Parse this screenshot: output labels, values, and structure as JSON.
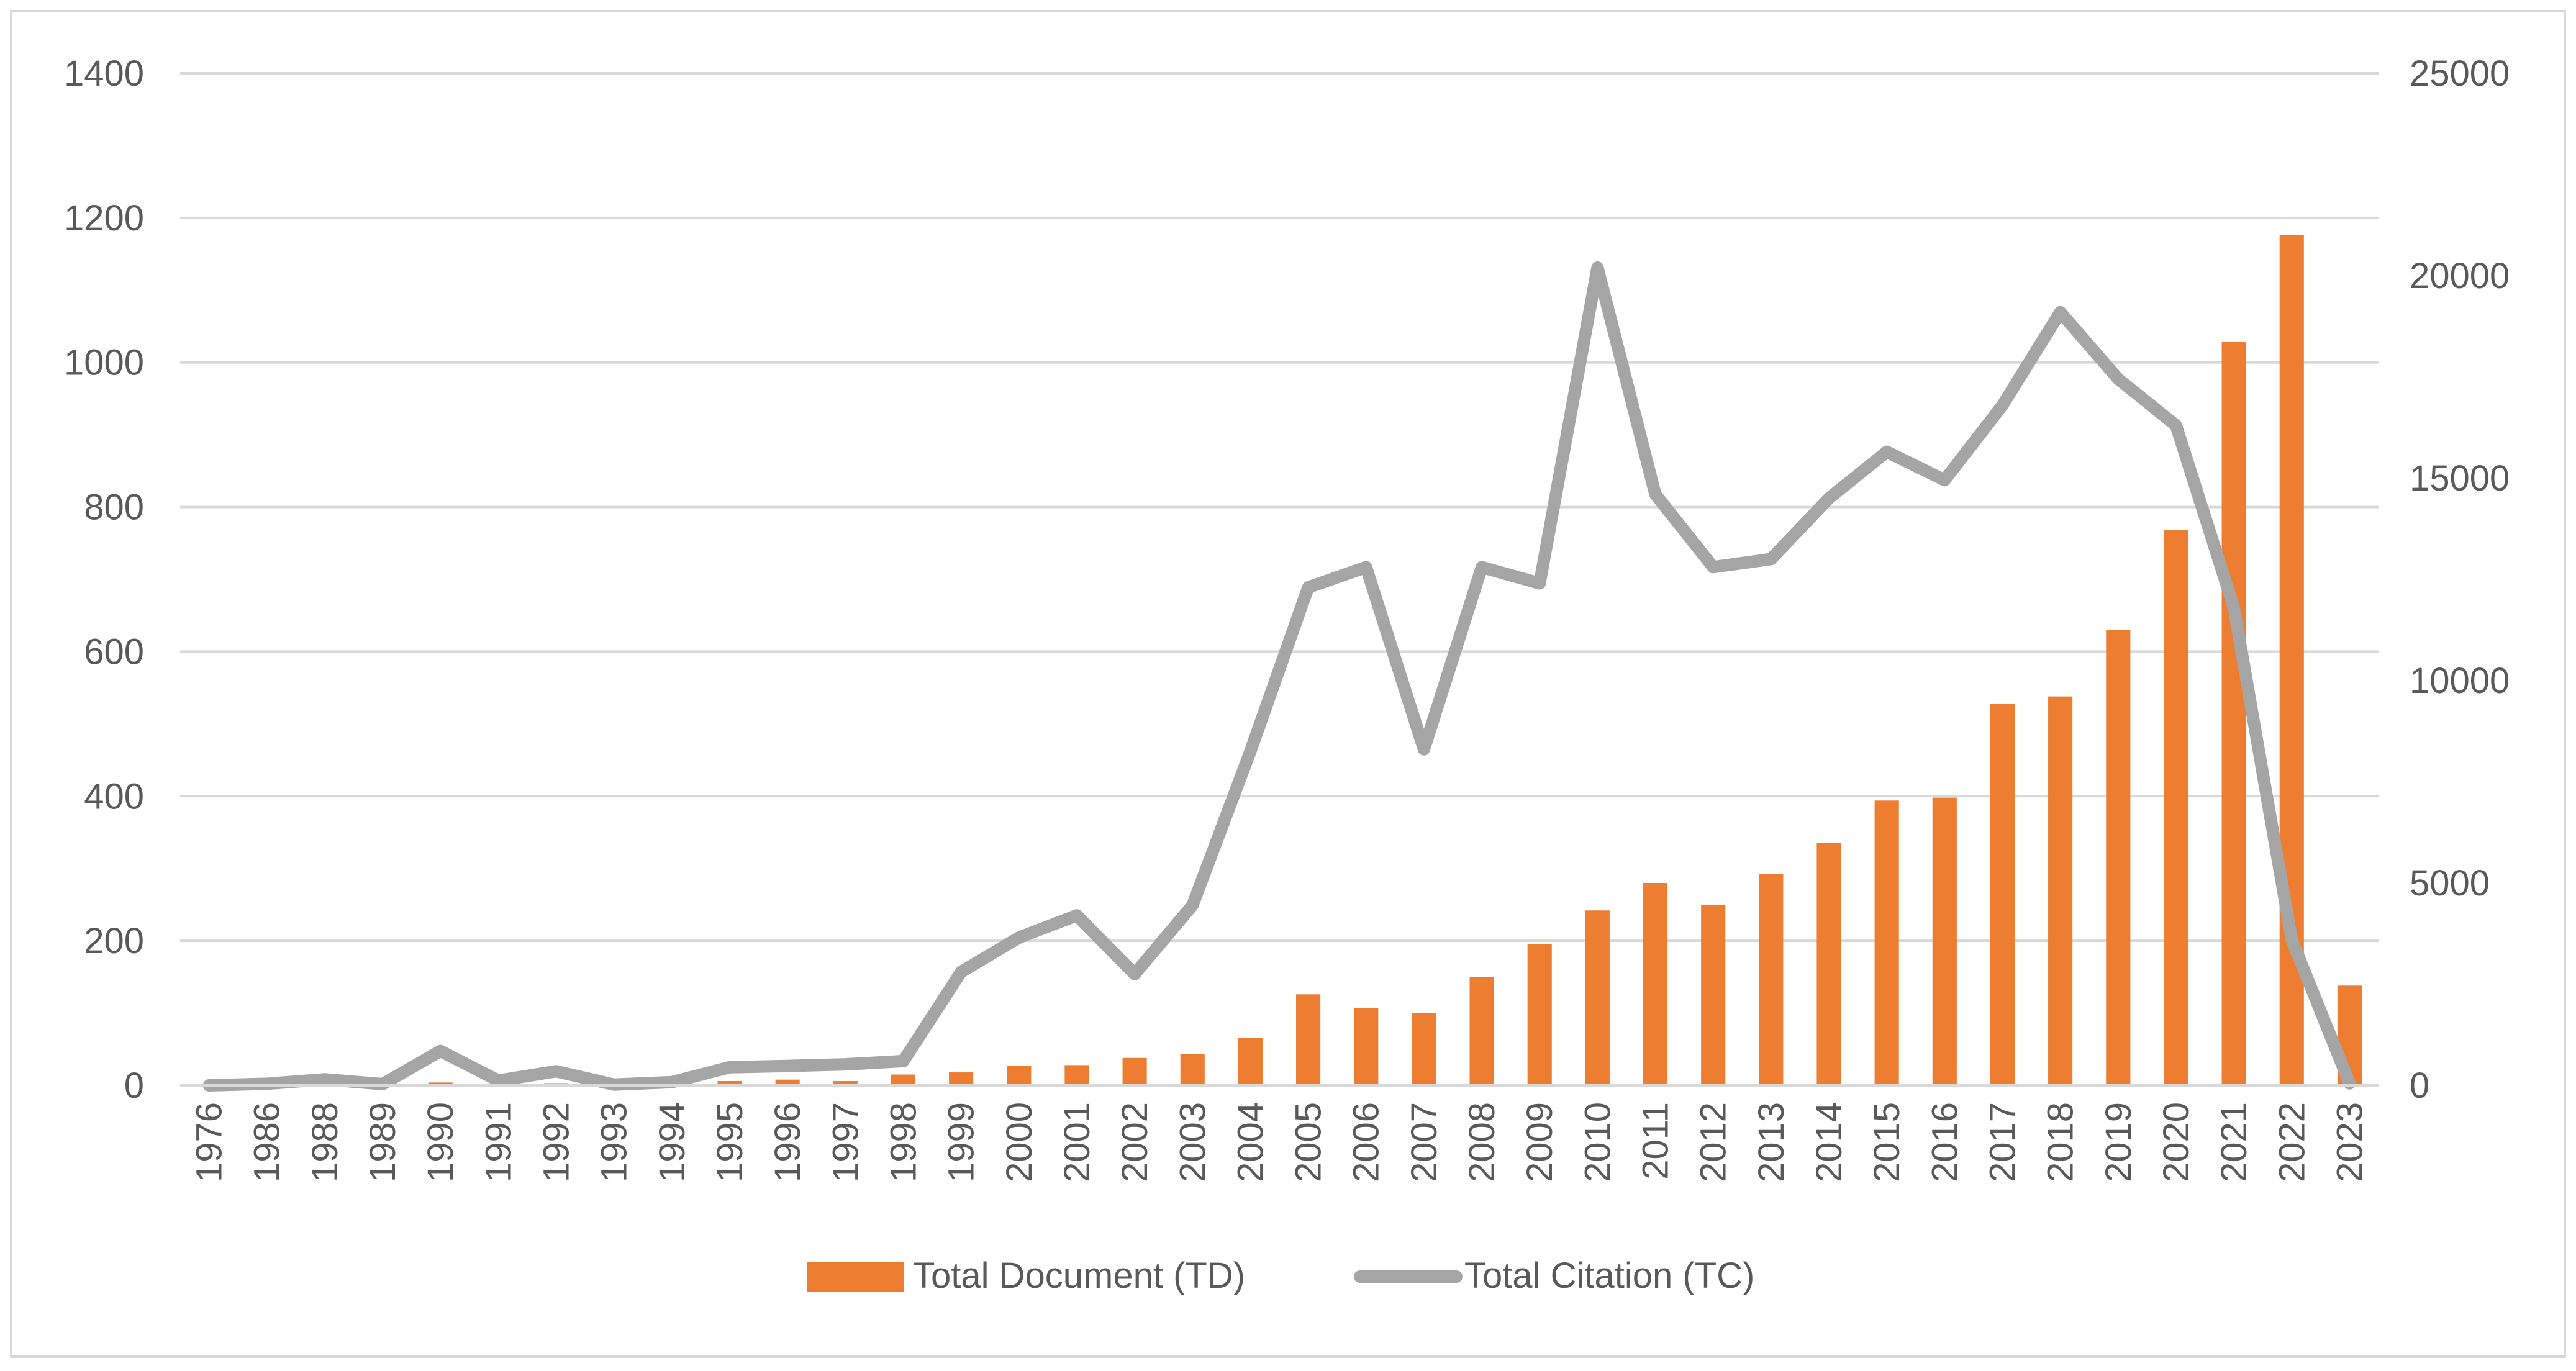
{
  "chart_data": {
    "type": "bar+line",
    "categories": [
      "1976",
      "1986",
      "1988",
      "1989",
      "1990",
      "1991",
      "1992",
      "1993",
      "1994",
      "1995",
      "1996",
      "1997",
      "1998",
      "1999",
      "2000",
      "2001",
      "2002",
      "2003",
      "2004",
      "2005",
      "2006",
      "2007",
      "2008",
      "2009",
      "2010",
      "2011",
      "2012",
      "2013",
      "2014",
      "2015",
      "2016",
      "2017",
      "2018",
      "2019",
      "2020",
      "2021",
      "2022",
      "2023"
    ],
    "series": [
      {
        "name": "Total Document (TD)",
        "type": "bar",
        "axis": "left",
        "color": "#ED7D31",
        "values": [
          1,
          1,
          1,
          1,
          4,
          2,
          3,
          1,
          2,
          6,
          8,
          6,
          15,
          18,
          27,
          28,
          38,
          43,
          66,
          126,
          107,
          100,
          150,
          195,
          242,
          280,
          250,
          292,
          335,
          394,
          398,
          528,
          538,
          630,
          768,
          1029,
          1176,
          138
        ]
      },
      {
        "name": "Total Citation (TC)",
        "type": "line",
        "axis": "right",
        "color": "#A5A5A5",
        "values": [
          0,
          40,
          150,
          30,
          850,
          120,
          350,
          20,
          80,
          450,
          480,
          520,
          600,
          2800,
          3650,
          4200,
          2750,
          4450,
          8250,
          12300,
          12800,
          8300,
          12800,
          12400,
          20200,
          14600,
          12800,
          13000,
          14500,
          15650,
          14950,
          16800,
          19100,
          17450,
          16300,
          11800,
          3600,
          50
        ]
      }
    ],
    "y_left": {
      "min": 0,
      "max": 1400,
      "ticks": [
        "0",
        "200",
        "400",
        "600",
        "800",
        "1000",
        "1200",
        "1400"
      ]
    },
    "y_right": {
      "min": 0,
      "max": 25000,
      "ticks": [
        "0",
        "5000",
        "10000",
        "15000",
        "20000",
        "25000"
      ]
    },
    "grid": true,
    "legend_position": "bottom",
    "title": "",
    "xlabel": "",
    "ylabel": ""
  }
}
